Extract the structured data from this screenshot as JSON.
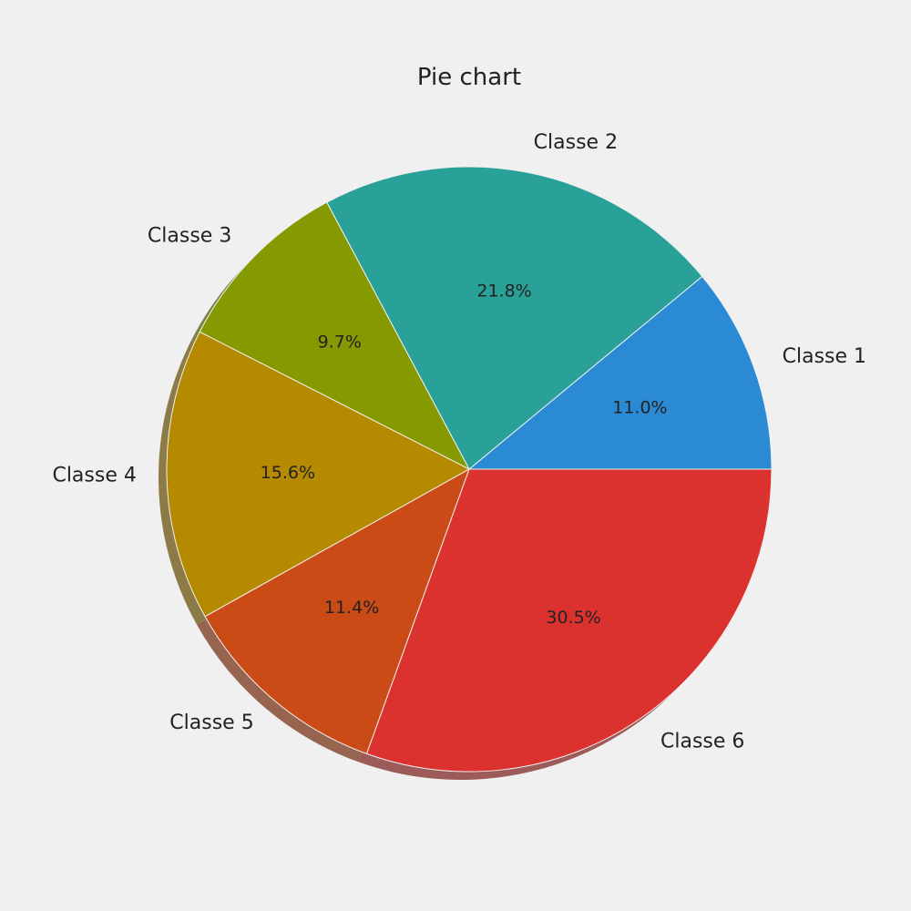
{
  "chart_data": {
    "type": "pie",
    "title": "Pie chart",
    "labels": [
      "Classe 1",
      "Classe 2",
      "Classe 3",
      "Classe 4",
      "Classe 5",
      "Classe 6"
    ],
    "values": [
      11.0,
      21.8,
      9.7,
      15.6,
      11.4,
      30.5
    ],
    "percent_labels": [
      "11.0%",
      "21.8%",
      "9.7%",
      "15.6%",
      "11.4%",
      "30.5%"
    ],
    "colors": [
      "#2a8ad4",
      "#2aa198",
      "#859900",
      "#b58900",
      "#cb4b16",
      "#dc322f"
    ],
    "start_angle": 0,
    "direction": "counterclockwise",
    "shadow": true
  }
}
